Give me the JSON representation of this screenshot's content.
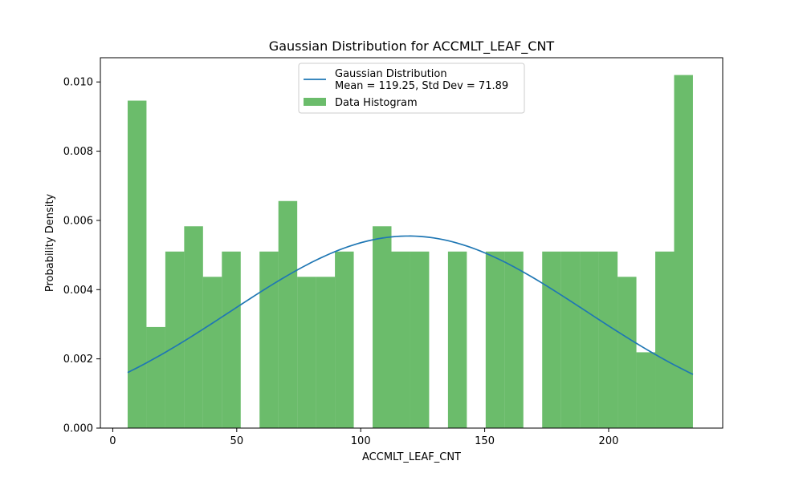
{
  "chart_data": {
    "type": "bar",
    "title": "Gaussian Distribution for ACCMLT_LEAF_CNT",
    "xlabel": "ACCMLT_LEAF_CNT",
    "ylabel": "Probability Density",
    "xlim": [
      -5,
      246
    ],
    "ylim": [
      0,
      0.0107
    ],
    "xticks": [
      0,
      50,
      100,
      150,
      200
    ],
    "xtick_labels": [
      "0",
      "50",
      "100",
      "150",
      "200"
    ],
    "yticks": [
      0,
      0.002,
      0.004,
      0.006,
      0.008,
      0.01
    ],
    "ytick_labels": [
      "0.000",
      "0.002",
      "0.004",
      "0.006",
      "0.008",
      "0.010"
    ],
    "histogram": {
      "name": "Data Histogram",
      "color": "#2ca02c",
      "opacity": 0.7,
      "bin_start": 6,
      "bin_width": 7.6,
      "values": [
        0.00946,
        0.00292,
        0.0051,
        0.00583,
        0.00437,
        0.0051,
        0,
        0.0051,
        0.00656,
        0.00437,
        0.00437,
        0.0051,
        0,
        0.00583,
        0.0051,
        0.0051,
        0,
        0.0051,
        0,
        0.0051,
        0.0051,
        0,
        0.0051,
        0.0051,
        0.0051,
        0.0051,
        0.00437,
        0.00219,
        0.0051,
        0.0102
      ]
    },
    "gaussian": {
      "name": "Gaussian Distribution",
      "legend_line2": "Mean = 119.25, Std Dev = 71.89",
      "mean": 119.25,
      "std": 71.89,
      "x_range": [
        6,
        234
      ],
      "color": "#1f77b4"
    },
    "legend": "upper center",
    "grid": false
  }
}
